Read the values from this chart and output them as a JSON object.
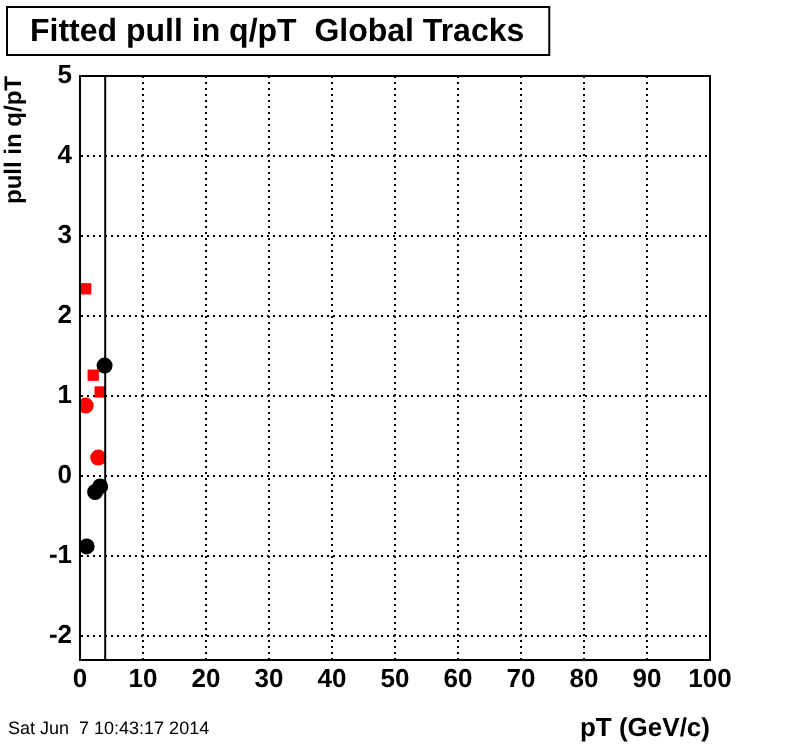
{
  "chart_data": {
    "type": "scatter",
    "title": "Fitted pull in q/pT  Global Tracks",
    "xlabel": "pT (GeV/c)",
    "ylabel": "pull in q/pT",
    "annotations": [
      "Sat Jun  7 10:43:17 2014"
    ],
    "series": [
      {
        "color": "#ff0000",
        "marker": "square",
        "x": [
          0.9,
          2.1,
          3.2
        ],
        "values": [
          2.34,
          1.26,
          1.05
        ]
      },
      {
        "color": "#ff0000",
        "marker": "circle",
        "x": [
          0.9,
          2.9
        ],
        "values": [
          0.88,
          0.23
        ]
      },
      {
        "color": "#000000",
        "marker": "circle",
        "x": [
          3.9,
          3.2,
          2.4,
          1.05
        ],
        "values": [
          1.38,
          -0.13,
          -0.2,
          -0.88
        ]
      }
    ],
    "ref_lines": [
      {
        "axis": "x",
        "value": 4,
        "color": "#000000"
      }
    ],
    "xlim": [
      0,
      100
    ],
    "xticks": [
      0,
      10,
      20,
      30,
      40,
      50,
      60,
      70,
      80,
      90,
      100
    ],
    "ylim": [
      -2.3,
      5
    ],
    "yticks": [
      -2,
      -1,
      0,
      1,
      2,
      3,
      4,
      5
    ],
    "grid": true,
    "legend": false
  }
}
